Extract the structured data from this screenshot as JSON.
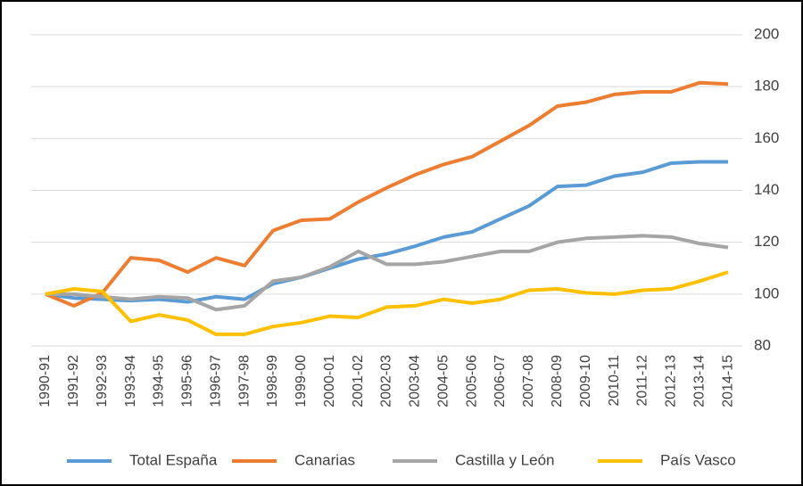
{
  "chart_data": {
    "type": "line",
    "categories": [
      "1990-91",
      "1991-92",
      "1992-93",
      "1993-94",
      "1994-95",
      "1995-96",
      "1996-97",
      "1997-98",
      "1998-99",
      "1999-00",
      "2000-01",
      "2001-02",
      "2002-03",
      "2003-04",
      "2004-05",
      "2005-06",
      "2006-07",
      "2007-08",
      "2008-09",
      "2009-10",
      "2010-11",
      "2011-12",
      "2012-13",
      "2013-14",
      "2014-15"
    ],
    "series": [
      {
        "name": "Total España",
        "color": "#5b9bd5",
        "values": [
          100,
          98.5,
          98,
          97.5,
          98,
          97,
          99,
          98,
          104,
          106.5,
          110,
          113.5,
          115.5,
          118.5,
          122,
          124,
          129,
          134,
          141.5,
          142,
          145.5,
          147,
          150.5,
          151,
          151
        ]
      },
      {
        "name": "Canarias",
        "color": "#ed7d31",
        "values": [
          100,
          95.5,
          100.5,
          114,
          113,
          108.5,
          114,
          111,
          124.5,
          128.5,
          129,
          135.5,
          141,
          146,
          150,
          153,
          159,
          165,
          172.5,
          174,
          177,
          178,
          178,
          181.5,
          181
        ]
      },
      {
        "name": "Castilla y León",
        "color": "#a5a5a5",
        "values": [
          100,
          100,
          99,
          98,
          99,
          98.5,
          94,
          95.5,
          105,
          106.5,
          110.5,
          116.5,
          111.5,
          111.5,
          112.5,
          114.5,
          116.5,
          116.5,
          120,
          121.5,
          122,
          122.5,
          122,
          119.5,
          118
        ]
      },
      {
        "name": "País Vasco",
        "color": "#ffc000",
        "values": [
          100,
          102,
          101,
          89.5,
          92,
          90,
          84.5,
          84.5,
          87.5,
          89,
          91.5,
          91,
          95,
          95.5,
          98,
          96.5,
          98,
          101.5,
          102,
          100.5,
          100,
          101.5,
          102,
          105,
          108.5
        ]
      }
    ],
    "ylim": [
      80,
      200
    ],
    "yticks": [
      80,
      100,
      120,
      140,
      160,
      180,
      200
    ],
    "grid": true,
    "legend": "bottom"
  }
}
